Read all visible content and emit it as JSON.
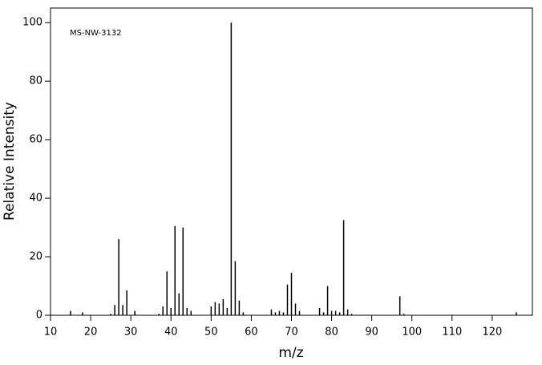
{
  "chart_data": {
    "type": "stem",
    "annotation": "MS-NW-3132",
    "x_label": "m/z",
    "y_label": "Relative Intensity",
    "x": [
      15,
      18,
      25,
      26,
      27,
      28,
      29,
      31,
      37,
      38,
      39,
      40,
      41,
      42,
      43,
      44,
      45,
      50,
      51,
      52,
      53,
      54,
      55,
      56,
      57,
      58,
      65,
      66,
      67,
      68,
      69,
      70,
      71,
      72,
      77,
      78,
      79,
      80,
      81,
      82,
      83,
      84,
      85,
      97,
      98,
      126
    ],
    "values": [
      1.5,
      1,
      0.5,
      3.5,
      26,
      3.5,
      8.5,
      1.5,
      0.5,
      3,
      15,
      2.5,
      30.5,
      7.5,
      30,
      2.5,
      1.5,
      3,
      4.5,
      4,
      5.5,
      2.5,
      100,
      18.5,
      5,
      1,
      2,
      1,
      1.5,
      1,
      10.5,
      14.5,
      4,
      1.5,
      2.5,
      1,
      10,
      1.5,
      1.5,
      1,
      32.5,
      2,
      0.5,
      6.5,
      0.5,
      1
    ],
    "color": "#000000",
    "xlim": [
      10,
      130
    ],
    "ylim": [
      0,
      105
    ],
    "xticks": [
      10,
      20,
      30,
      40,
      50,
      60,
      70,
      80,
      90,
      100,
      110,
      120
    ],
    "yticks": [
      0,
      20,
      40,
      60,
      80,
      100
    ]
  }
}
